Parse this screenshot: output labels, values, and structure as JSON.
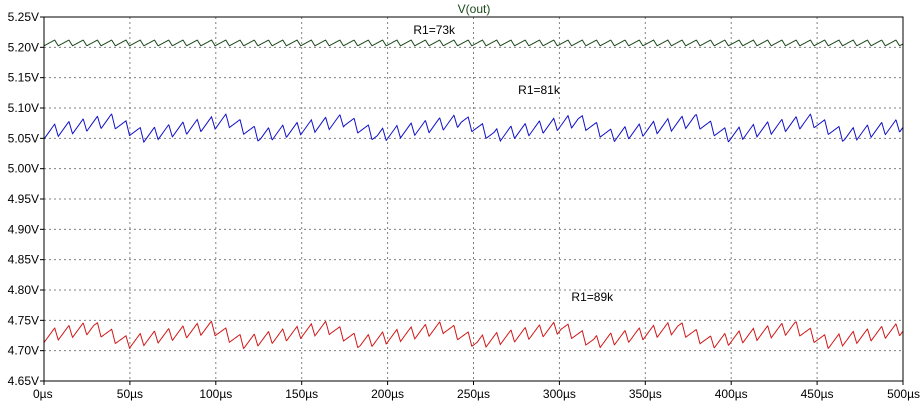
{
  "chart_data": {
    "type": "line",
    "title": "V(out)",
    "xlabel": "",
    "ylabel": "",
    "xlim": [
      0,
      500
    ],
    "ylim": [
      4.65,
      5.25
    ],
    "x_unit": "µs",
    "grid": true,
    "x_ticks": [
      0,
      50,
      100,
      150,
      200,
      250,
      300,
      350,
      400,
      450,
      500
    ],
    "x_tick_labels": [
      "0µs",
      "50µs",
      "100µs",
      "150µs",
      "200µs",
      "250µs",
      "300µs",
      "350µs",
      "400µs",
      "450µs",
      "500µs"
    ],
    "y_ticks": [
      5.25,
      5.2,
      5.15,
      5.1,
      5.05,
      5.0,
      4.95,
      4.9,
      4.85,
      4.8,
      4.75,
      4.7,
      4.65
    ],
    "y_tick_labels": [
      "5.25V",
      "5.20V",
      "5.15V",
      "5.10V",
      "5.05V",
      "5.00V",
      "4.95V",
      "4.90V",
      "4.85V",
      "4.80V",
      "4.75V",
      "4.70V",
      "4.65V"
    ],
    "series": [
      {
        "color": "#1a4a1a",
        "sawtooth": {
          "period": 8.3,
          "low": 5.193,
          "high": 5.212
        },
        "annotation": {
          "text": "R1=73k",
          "x": 215,
          "y": 5.222
        }
      },
      {
        "color": "#1010c8",
        "sawtooth": {
          "period": 8.3,
          "low": 5.03,
          "high": 5.108
        },
        "annotation": {
          "text": "R1=81k",
          "x": 276,
          "y": 5.123
        }
      },
      {
        "color": "#d01818",
        "sawtooth": {
          "period": 8.3,
          "low": 4.69,
          "high": 4.766
        },
        "annotation": {
          "text": "R1=89k",
          "x": 307,
          "y": 4.782
        }
      }
    ],
    "colors": {
      "title": "#1a4a1a",
      "grid": "#808080",
      "axis": "#000000"
    }
  }
}
